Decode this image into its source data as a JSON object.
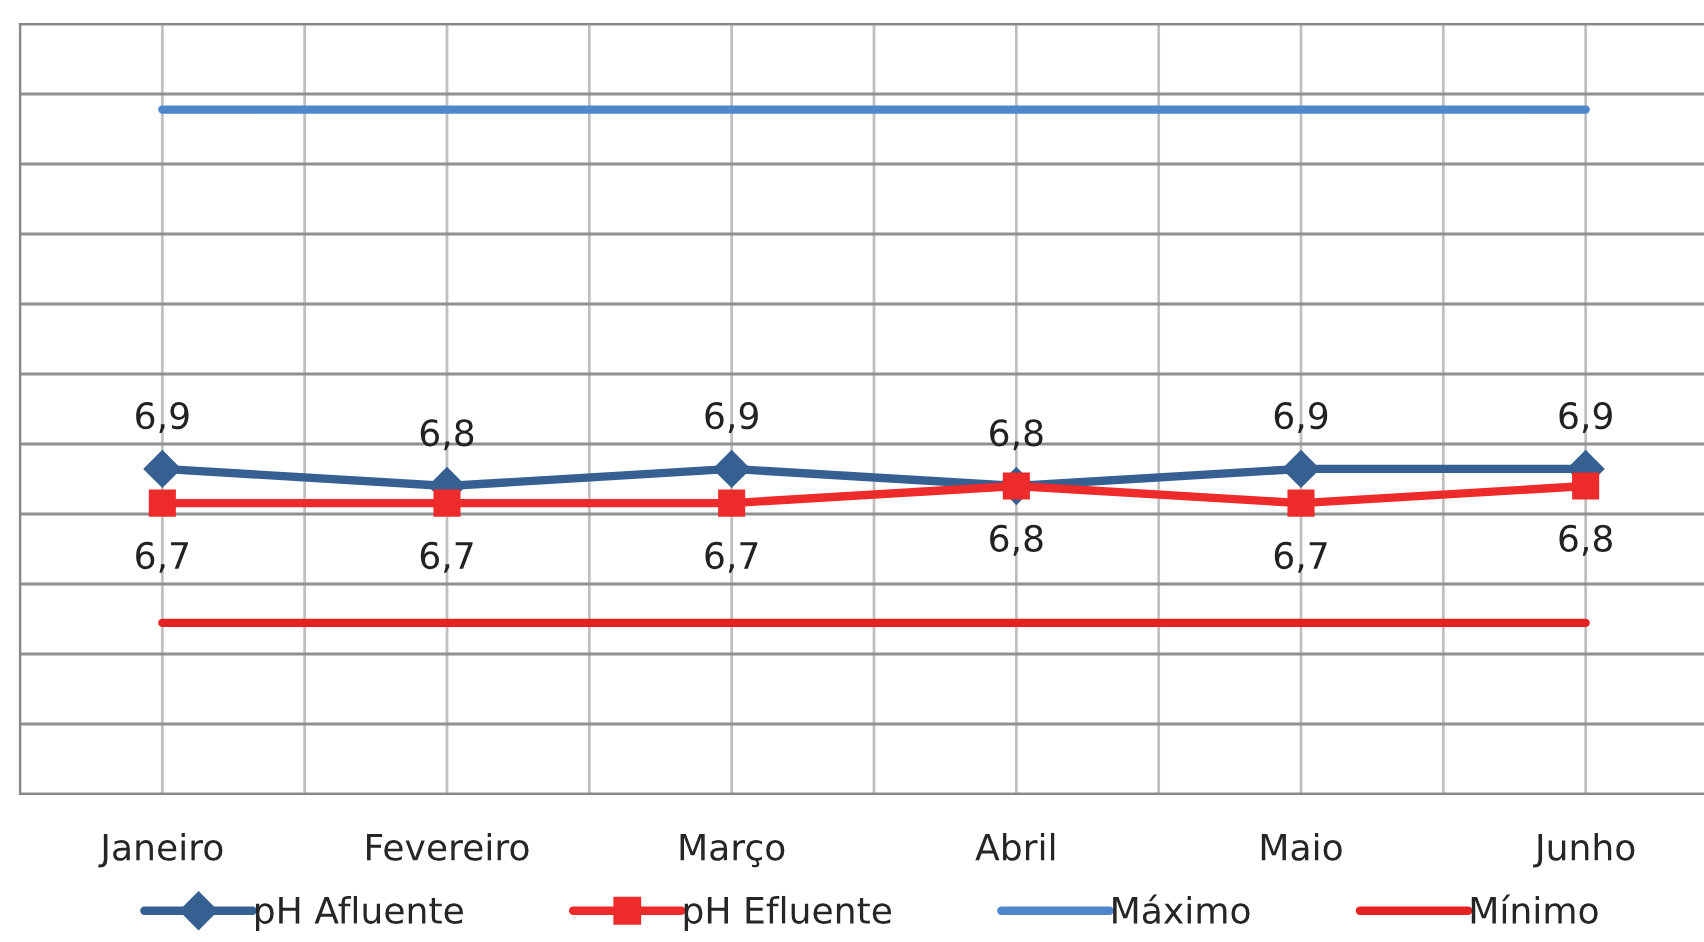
{
  "chart_data": {
    "type": "line",
    "categories": [
      "Janeiro",
      "Fevereiro",
      "Março",
      "Abril",
      "Maio",
      "Junho"
    ],
    "series": [
      {
        "name": "pH Afluente",
        "color": "#376092",
        "marker": "diamond",
        "values": [
          6.9,
          6.8,
          6.9,
          6.8,
          6.9,
          6.9
        ],
        "value_labels": [
          "6,9",
          "6,8",
          "6,9",
          "6,8",
          "6,9",
          "6,9"
        ]
      },
      {
        "name": "pH Efluente",
        "color": "#ee2b2b",
        "marker": "square",
        "values": [
          6.7,
          6.7,
          6.7,
          6.8,
          6.7,
          6.8
        ],
        "value_labels": [
          "6,7",
          "6,7",
          "6,7",
          "6,8",
          "6,7",
          "6,8"
        ]
      },
      {
        "name": "Máximo",
        "color": "#4f87cc",
        "marker": "none",
        "values": [
          9,
          9,
          9,
          9,
          9,
          9
        ]
      },
      {
        "name": "Mínimo",
        "color": "#e52222",
        "marker": "none",
        "values": [
          6,
          6,
          6,
          6,
          6,
          6
        ]
      }
    ],
    "grid": true,
    "legend": "bottom"
  }
}
